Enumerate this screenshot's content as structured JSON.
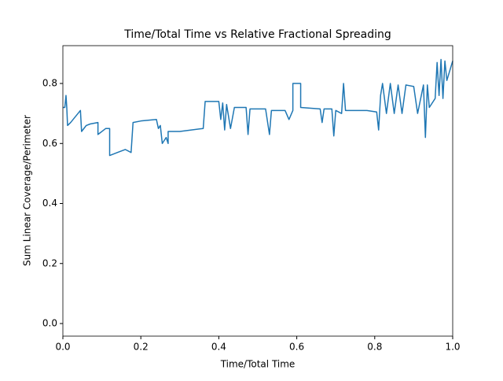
{
  "chart_data": {
    "type": "line",
    "title": "Time/Total Time vs Relative Fractional Spreading",
    "x_label": "Time/Total Time",
    "y_label": "Sum Linear Coverage/Perimeter",
    "color": "#1f77b4",
    "x": [
      0,
      0.005,
      0.008,
      0.01,
      0.012,
      0.02,
      0.045,
      0.048,
      0.06,
      0.07,
      0.09,
      0.09,
      0.11,
      0.12,
      0.12,
      0.14,
      0.16,
      0.175,
      0.18,
      0.2,
      0.24,
      0.245,
      0.25,
      0.255,
      0.265,
      0.27,
      0.27,
      0.3,
      0.36,
      0.365,
      0.4,
      0.405,
      0.41,
      0.415,
      0.42,
      0.43,
      0.44,
      0.47,
      0.475,
      0.48,
      0.5,
      0.52,
      0.53,
      0.535,
      0.57,
      0.58,
      0.59,
      0.59,
      0.61,
      0.61,
      0.66,
      0.665,
      0.67,
      0.69,
      0.695,
      0.7,
      0.715,
      0.72,
      0.725,
      0.78,
      0.805,
      0.81,
      0.815,
      0.82,
      0.83,
      0.84,
      0.85,
      0.86,
      0.87,
      0.88,
      0.9,
      0.91,
      0.925,
      0.93,
      0.935,
      0.94,
      0.955,
      0.96,
      0.965,
      0.97,
      0.975,
      0.98,
      0.985,
      1.0
    ],
    "values": [
      0.72,
      0.72,
      0.76,
      0.72,
      0.66,
      0.67,
      0.71,
      0.64,
      0.66,
      0.665,
      0.67,
      0.63,
      0.65,
      0.65,
      0.56,
      0.57,
      0.58,
      0.57,
      0.67,
      0.675,
      0.68,
      0.65,
      0.66,
      0.6,
      0.62,
      0.6,
      0.64,
      0.64,
      0.65,
      0.74,
      0.74,
      0.68,
      0.735,
      0.645,
      0.73,
      0.65,
      0.72,
      0.72,
      0.63,
      0.715,
      0.715,
      0.715,
      0.63,
      0.71,
      0.71,
      0.68,
      0.71,
      0.8,
      0.8,
      0.72,
      0.715,
      0.67,
      0.715,
      0.715,
      0.625,
      0.71,
      0.7,
      0.8,
      0.71,
      0.71,
      0.705,
      0.645,
      0.76,
      0.8,
      0.7,
      0.8,
      0.7,
      0.795,
      0.7,
      0.795,
      0.79,
      0.7,
      0.795,
      0.62,
      0.795,
      0.72,
      0.75,
      0.87,
      0.76,
      0.88,
      0.75,
      0.875,
      0.81,
      0.875
    ],
    "xlim": [
      0,
      1
    ],
    "ylim": [
      -0.042,
      0.926
    ],
    "xticks": [
      {
        "value": 0,
        "label": "0.0"
      },
      0.2,
      0.4,
      0.6,
      0.8,
      {
        "value": 1,
        "label": "1.0"
      }
    ],
    "yticks": [
      {
        "value": 0,
        "label": "0.0"
      },
      0.2,
      0.4,
      0.6,
      0.8
    ]
  }
}
